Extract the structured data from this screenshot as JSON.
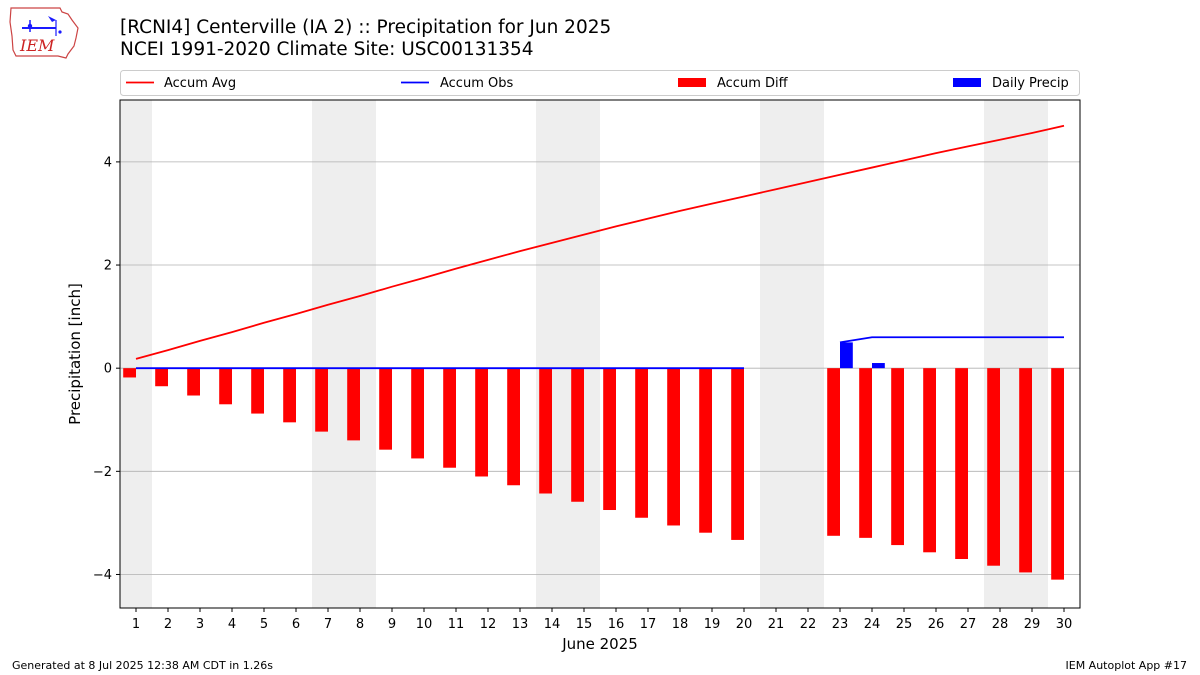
{
  "title": "[RCNI4] Centerville (IA 2) :: Precipitation for Jun 2025",
  "subtitle": "NCEI 1991-2020 Climate Site: USC00131354",
  "logo_text": "IEM",
  "footer_left": "Generated at 8 Jul 2025 12:38 AM CDT in 1.26s",
  "footer_right": "IEM Autoplot App #17",
  "chart_data": {
    "type": "bar",
    "xlabel": "June 2025",
    "ylabel": "Precipitation [inch]",
    "xlim": [
      0.5,
      30.5
    ],
    "ylim": [
      -4.65,
      5.2
    ],
    "yticks": [
      -4,
      -2,
      0,
      2,
      4
    ],
    "xticks": [
      1,
      2,
      3,
      4,
      5,
      6,
      7,
      8,
      9,
      10,
      11,
      12,
      13,
      14,
      15,
      16,
      17,
      18,
      19,
      20,
      21,
      22,
      23,
      24,
      25,
      26,
      27,
      28,
      29,
      30
    ],
    "grid": true,
    "legend_position": "top",
    "weekend_shading": [
      [
        0.5,
        1.5
      ],
      [
        6.5,
        8.5
      ],
      [
        13.5,
        15.5
      ],
      [
        20.5,
        22.5
      ],
      [
        27.5,
        29.5
      ]
    ],
    "colors": {
      "avg": "#ff0000",
      "obs": "#0000ff",
      "diff": "#ff0000",
      "daily": "#0000ff",
      "shade": "#eeeeee",
      "grid": "#b0b0b0"
    },
    "series": [
      {
        "name": "Accum Avg",
        "kind": "line",
        "color": "#ff0000",
        "x": [
          1,
          2,
          3,
          4,
          5,
          6,
          7,
          8,
          9,
          10,
          11,
          12,
          13,
          14,
          15,
          16,
          17,
          18,
          19,
          20,
          21,
          22,
          23,
          24,
          25,
          26,
          27,
          28,
          29,
          30
        ],
        "values": [
          0.18,
          0.35,
          0.53,
          0.7,
          0.88,
          1.05,
          1.23,
          1.4,
          1.58,
          1.75,
          1.93,
          2.1,
          2.27,
          2.43,
          2.59,
          2.75,
          2.9,
          3.05,
          3.19,
          3.33,
          3.47,
          3.61,
          3.75,
          3.89,
          4.03,
          4.17,
          4.3,
          4.43,
          4.56,
          4.7
        ]
      },
      {
        "name": "Accum Obs",
        "kind": "line",
        "color": "#0000ff",
        "x": [
          1,
          2,
          3,
          4,
          5,
          6,
          7,
          8,
          9,
          10,
          11,
          12,
          13,
          14,
          15,
          16,
          17,
          18,
          19,
          20,
          21,
          22,
          23,
          24,
          25,
          26,
          27,
          28,
          29,
          30
        ],
        "values": [
          0,
          0,
          0,
          0,
          0,
          0,
          0,
          0,
          0,
          0,
          0,
          0,
          0,
          0,
          0,
          0,
          0,
          0,
          0,
          0,
          null,
          null,
          0.5,
          0.6,
          0.6,
          0.6,
          0.6,
          0.6,
          0.6,
          0.6
        ]
      },
      {
        "name": "Accum Diff",
        "kind": "bar",
        "color": "#ff0000",
        "offset": -0.2,
        "width": 0.4,
        "x": [
          1,
          2,
          3,
          4,
          5,
          6,
          7,
          8,
          9,
          10,
          11,
          12,
          13,
          14,
          15,
          16,
          17,
          18,
          19,
          20,
          23,
          24,
          25,
          26,
          27,
          28,
          29,
          30
        ],
        "values": [
          -0.18,
          -0.35,
          -0.53,
          -0.7,
          -0.88,
          -1.05,
          -1.23,
          -1.4,
          -1.58,
          -1.75,
          -1.93,
          -2.1,
          -2.27,
          -2.43,
          -2.59,
          -2.75,
          -2.9,
          -3.05,
          -3.19,
          -3.33,
          -3.25,
          -3.29,
          -3.43,
          -3.57,
          -3.7,
          -3.83,
          -3.96,
          -4.1
        ]
      },
      {
        "name": "Daily Precip",
        "kind": "bar",
        "color": "#0000ff",
        "offset": 0.2,
        "width": 0.4,
        "x": [
          23,
          24
        ],
        "values": [
          0.5,
          0.1
        ]
      }
    ]
  }
}
